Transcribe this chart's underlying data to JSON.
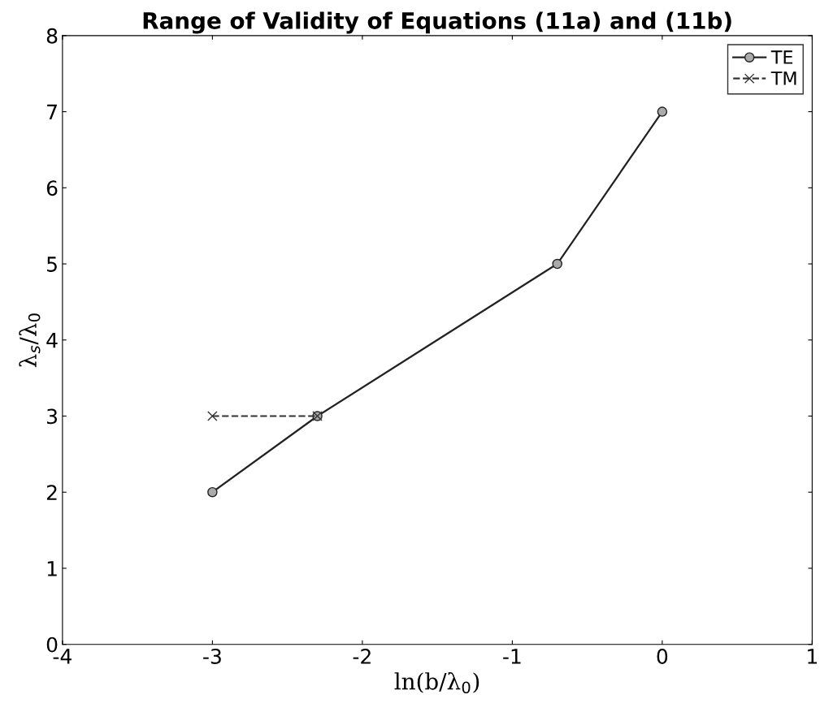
{
  "chart_data": {
    "type": "line",
    "title": "Range of Validity of Equations (11a) and (11b)",
    "xlabel": "ln(b/λ$_{0}$)",
    "ylabel": "λ$_{s}$/λ$_{0}$",
    "xlim": [
      -4,
      1
    ],
    "xticks": [
      -4,
      -3,
      -2,
      -1,
      0,
      1
    ],
    "ylim": [
      0,
      8
    ],
    "yticks": [
      0,
      1,
      2,
      3,
      4,
      5,
      6,
      7,
      8
    ],
    "grid": false,
    "legend": "top right",
    "series": [
      {
        "name": "TE",
        "color": "#222222",
        "x": [
          -3,
          -2.3,
          -0.7,
          0
        ],
        "values": [
          2,
          3,
          5,
          7
        ],
        "marker": "circle",
        "line_style": "solid"
      },
      {
        "name": "TM",
        "color": "#333333",
        "x": [
          -3,
          -2.3
        ],
        "values": [
          3,
          3
        ],
        "marker": "cross",
        "line_style": "dashed"
      }
    ]
  }
}
